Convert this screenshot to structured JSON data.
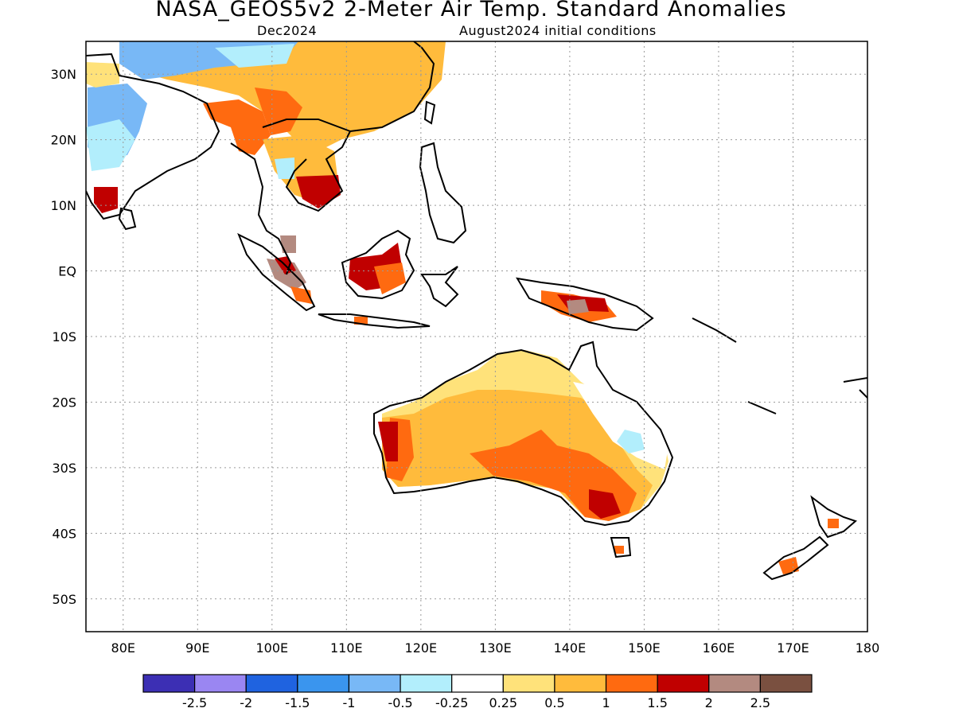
{
  "title": "NASA_GEOS5v2 2-Meter Air Temp. Standard Anomalies",
  "subtitle_left": "Dec2024",
  "subtitle_right": "August2024 initial conditions",
  "map": {
    "lon_range": [
      75,
      180
    ],
    "lat_range": [
      -55,
      35
    ],
    "lat_ticks": [
      {
        "value": 30,
        "label": "30N"
      },
      {
        "value": 20,
        "label": "20N"
      },
      {
        "value": 10,
        "label": "10N"
      },
      {
        "value": 0,
        "label": "EQ"
      },
      {
        "value": -10,
        "label": "10S"
      },
      {
        "value": -20,
        "label": "20S"
      },
      {
        "value": -30,
        "label": "30S"
      },
      {
        "value": -40,
        "label": "40S"
      },
      {
        "value": -50,
        "label": "50S"
      }
    ],
    "lon_ticks": [
      {
        "value": 80,
        "label": "80E"
      },
      {
        "value": 90,
        "label": "90E"
      },
      {
        "value": 100,
        "label": "100E"
      },
      {
        "value": 110,
        "label": "110E"
      },
      {
        "value": 120,
        "label": "120E"
      },
      {
        "value": 130,
        "label": "130E"
      },
      {
        "value": 140,
        "label": "140E"
      },
      {
        "value": 150,
        "label": "150E"
      },
      {
        "value": 160,
        "label": "160E"
      },
      {
        "value": 170,
        "label": "170E"
      },
      {
        "value": 180,
        "label": "180"
      }
    ],
    "grid": "dotted"
  },
  "colorbar": {
    "colors": [
      "#3c2fb4",
      "#9a86f2",
      "#1f63e0",
      "#3a95ee",
      "#78b8f6",
      "#b2eefc",
      "#ffffff",
      "#ffe27a",
      "#ffbb3c",
      "#ff6a10",
      "#c00000",
      "#b38a80",
      "#7a5040"
    ],
    "labels": [
      "-2.5",
      "-2",
      "-1.5",
      "-1",
      "-0.5",
      "-0.25",
      "0.25",
      "0.5",
      "1",
      "1.5",
      "2",
      "2.5"
    ]
  }
}
